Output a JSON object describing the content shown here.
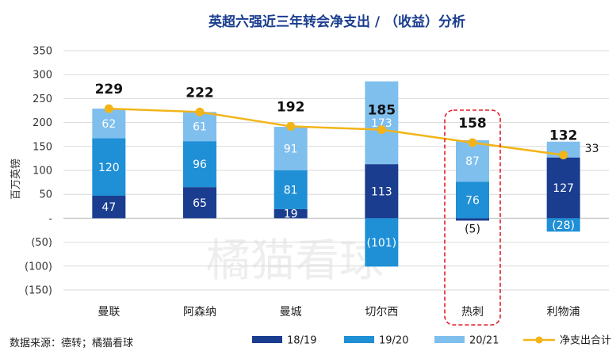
{
  "chart_data": {
    "type": "bar",
    "title": "英超六强近三年转会净支出 / （收益）分析",
    "ylabel": "百万英镑",
    "xlabel": "",
    "ylim": [
      -150,
      350
    ],
    "yticks": [
      350,
      300,
      250,
      200,
      150,
      100,
      50,
      0,
      -50,
      -100,
      -150
    ],
    "ytick_labels": [
      "350",
      "300",
      "250",
      "200",
      "150",
      "100",
      "50",
      "-",
      "(50)",
      "(100)",
      "(150)"
    ],
    "grid": true,
    "categories": [
      "曼联",
      "阿森纳",
      "曼城",
      "切尔西",
      "热刺",
      "利物浦"
    ],
    "series": [
      {
        "name": "18/19",
        "color": "#1a3d8f",
        "values": [
          47,
          65,
          19,
          113,
          -5,
          127
        ],
        "labels": [
          "47",
          "65",
          "19",
          "113",
          "(5)",
          "127"
        ]
      },
      {
        "name": "19/20",
        "color": "#1f8fd6",
        "values": [
          120,
          96,
          81,
          -101,
          76,
          -28
        ],
        "labels": [
          "120",
          "96",
          "81",
          "(101)",
          "76",
          "(28)"
        ]
      },
      {
        "name": "20/21",
        "color": "#7fbfee",
        "values": [
          62,
          61,
          91,
          173,
          87,
          33
        ],
        "labels": [
          "62",
          "61",
          "91",
          "173",
          "87",
          "33"
        ]
      }
    ],
    "net_line": {
      "name": "净支出合计",
      "color": "#f2b418",
      "values": [
        229,
        222,
        192,
        185,
        158,
        132
      ],
      "labels": [
        "229",
        "222",
        "192",
        "185",
        "158",
        "132"
      ]
    },
    "highlight_category": "热刺",
    "highlight_color": "#e0202a",
    "legend_position": "bottom"
  },
  "source_note": "数据来源：德转；橘猫看球",
  "watermark": "橘猫看球"
}
